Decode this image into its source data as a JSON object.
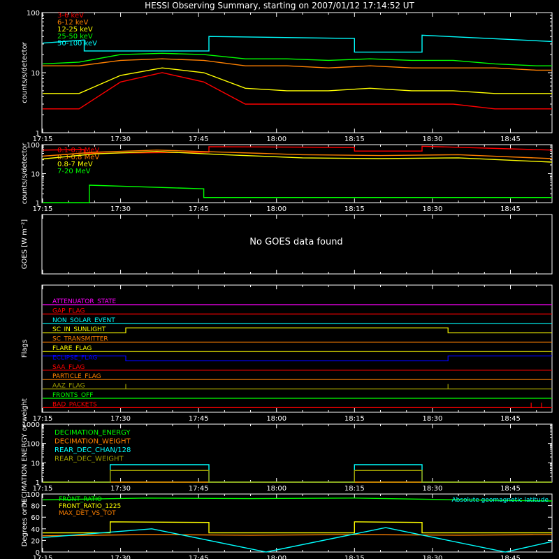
{
  "title": "HESSI Observing Summary, starting on 2007/01/12 17:14:52 UT",
  "x_tick_labels": [
    "17:15",
    "17:30",
    "17:45",
    "18:00",
    "18:15",
    "18:30",
    "18:45"
  ],
  "colors": {
    "red": "#ff0000",
    "orange": "#ff8000",
    "yellow": "#ffff00",
    "green": "#00ff00",
    "cyan": "#00ffff",
    "magenta": "#ff00ff",
    "blue": "#0000ff",
    "olive": "#a0a000",
    "white": "#ffffff"
  },
  "chart_data": [
    {
      "type": "line",
      "panel": "low-energy-rates",
      "ylabel": "counts/s/detector",
      "yscale": "log",
      "ylim": [
        1,
        100
      ],
      "y_tick_labels": [
        "1",
        "10",
        "100"
      ],
      "x_tick_labels": [
        "17:15",
        "17:30",
        "17:45",
        "18:00",
        "18:15",
        "18:30",
        "18:45"
      ],
      "x_range": [
        "17:14:52",
        "18:53"
      ],
      "series": [
        {
          "name": "3-6 keV",
          "color": "#ff0000",
          "x": [
            "17:15",
            "17:22",
            "17:30",
            "17:38",
            "17:46",
            "17:54",
            "18:02",
            "18:10",
            "18:18",
            "18:26",
            "18:34",
            "18:42",
            "18:50",
            "18:53"
          ],
          "values": [
            2.5,
            2.5,
            7,
            10,
            7,
            3,
            3,
            3,
            3,
            3,
            3,
            2.5,
            2.5,
            2.5
          ]
        },
        {
          "name": "6-12 keV",
          "color": "#ff8000",
          "x": [
            "17:15",
            "17:22",
            "17:30",
            "17:38",
            "17:46",
            "17:54",
            "18:02",
            "18:10",
            "18:18",
            "18:26",
            "18:34",
            "18:42",
            "18:50",
            "18:53"
          ],
          "values": [
            13,
            13,
            16,
            17,
            16,
            13,
            13,
            12,
            13,
            12,
            12,
            12,
            11,
            11
          ]
        },
        {
          "name": "12-25 keV",
          "color": "#ffff00",
          "x": [
            "17:15",
            "17:22",
            "17:30",
            "17:38",
            "17:46",
            "17:54",
            "18:02",
            "18:10",
            "18:18",
            "18:26",
            "18:34",
            "18:42",
            "18:50",
            "18:53"
          ],
          "values": [
            4.5,
            4.5,
            9,
            12,
            10,
            5.5,
            5,
            5,
            5.5,
            5,
            5,
            4.5,
            4.5,
            4.5
          ]
        },
        {
          "name": "25-50 keV",
          "color": "#00ff00",
          "x": [
            "17:15",
            "17:22",
            "17:30",
            "17:38",
            "17:46",
            "17:54",
            "18:02",
            "18:10",
            "18:18",
            "18:26",
            "18:34",
            "18:42",
            "18:50",
            "18:53"
          ],
          "values": [
            14,
            15,
            20,
            21,
            20,
            17,
            17,
            16,
            17,
            16,
            16,
            14,
            13,
            13
          ]
        },
        {
          "name": "50-100 keV",
          "color": "#00ffff",
          "x": [
            "17:15",
            "17:23",
            "17:23",
            "17:47",
            "17:47",
            "18:15",
            "18:15",
            "18:28",
            "18:28",
            "18:53"
          ],
          "values": [
            31,
            35,
            23,
            23,
            40,
            37,
            22,
            22,
            42,
            33
          ]
        }
      ]
    },
    {
      "type": "line",
      "panel": "high-energy-rates",
      "ylabel": "counts/s/detector",
      "yscale": "log",
      "ylim": [
        1,
        100
      ],
      "y_tick_labels": [
        "1",
        "10",
        "100"
      ],
      "x_tick_labels": [
        "17:15",
        "17:30",
        "17:45",
        "18:00",
        "18:15",
        "18:30",
        "18:45"
      ],
      "x_range": [
        "17:14:52",
        "18:53"
      ],
      "series": [
        {
          "name": "0.1-0.3 MeV",
          "color": "#ff0000",
          "x": [
            "17:15",
            "17:23",
            "17:23",
            "17:47",
            "17:47",
            "18:15",
            "18:15",
            "18:28",
            "18:28",
            "18:53"
          ],
          "values": [
            65,
            68,
            50,
            55,
            85,
            80,
            60,
            60,
            88,
            65
          ]
        },
        {
          "name": "0.3-0.8 MeV",
          "color": "#ff8000",
          "x": [
            "17:15",
            "17:25",
            "17:37",
            "17:50",
            "18:05",
            "18:20",
            "18:35",
            "18:53"
          ],
          "values": [
            40,
            55,
            65,
            55,
            45,
            42,
            45,
            33
          ]
        },
        {
          "name": "0.8-7 MeV",
          "color": "#ffff00",
          "x": [
            "17:15",
            "17:25",
            "17:37",
            "17:50",
            "18:05",
            "18:20",
            "18:35",
            "18:53"
          ],
          "values": [
            32,
            48,
            58,
            45,
            35,
            33,
            35,
            25
          ]
        },
        {
          "name": "7-20 MeV",
          "color": "#00ff00",
          "x": [
            "17:15",
            "17:24",
            "17:24",
            "17:46",
            "17:46",
            "18:53"
          ],
          "values": [
            1,
            1,
            4,
            3,
            1.5,
            1.5
          ]
        }
      ]
    },
    {
      "type": "line",
      "panel": "goes",
      "ylabel": "GOES [W m⁻²]",
      "message": "No GOES data found",
      "series": []
    },
    {
      "type": "line",
      "panel": "flags",
      "ylabel": "Flags",
      "x_tick_labels": [
        "17:15",
        "17:30",
        "17:45",
        "18:00",
        "18:15",
        "18:30",
        "18:45"
      ],
      "series": [
        {
          "name": "ATTENUATOR_STATE",
          "color": "#ff00ff",
          "x": [
            "17:15",
            "18:53"
          ],
          "values": [
            0,
            0
          ]
        },
        {
          "name": "GAP_FLAG",
          "color": "#ff0000",
          "x": [
            "17:15",
            "18:53"
          ],
          "values": [
            0,
            0
          ]
        },
        {
          "name": "NON_SOLAR_EVENT",
          "color": "#00ffff",
          "x": [
            "17:15",
            "18:53"
          ],
          "values": [
            0,
            0
          ]
        },
        {
          "name": "SC_IN_SUNLIGHT",
          "color": "#ffff00",
          "x": [
            "17:15",
            "17:31",
            "17:31",
            "18:33",
            "18:33",
            "18:53"
          ],
          "values": [
            0,
            0,
            1,
            1,
            0,
            0
          ]
        },
        {
          "name": "SC_TRANSMITTER",
          "color": "#ff8000",
          "x": [
            "17:15",
            "18:53"
          ],
          "values": [
            0,
            0
          ]
        },
        {
          "name": "FLARE_FLAG",
          "color": "#ffff00",
          "x": [
            "17:15",
            "18:53"
          ],
          "values": [
            0,
            0
          ]
        },
        {
          "name": "ECLIPSE_FLAG",
          "color": "#0000ff",
          "x": [
            "17:15",
            "17:31",
            "17:31",
            "18:33",
            "18:33",
            "18:53"
          ],
          "values": [
            1,
            1,
            0,
            0,
            1,
            1
          ]
        },
        {
          "name": "SAA_FLAG",
          "color": "#ff0000",
          "x": [
            "17:15",
            "18:53"
          ],
          "values": [
            0,
            0
          ]
        },
        {
          "name": "PARTICLE_FLAG",
          "color": "#ff8000",
          "x": [
            "17:15",
            "18:53"
          ],
          "values": [
            0,
            0
          ]
        },
        {
          "name": "AAZ_FLAG",
          "color": "#a0a000",
          "x": [
            "17:15",
            "17:31",
            "17:31",
            "17:31",
            "18:33",
            "18:33",
            "18:33",
            "18:53"
          ],
          "values": [
            0,
            0,
            1,
            0,
            0,
            1,
            0,
            0
          ]
        },
        {
          "name": "FRONTS_OFF",
          "color": "#00ff00",
          "x": [
            "17:15",
            "18:53"
          ],
          "values": [
            0,
            0
          ]
        },
        {
          "name": "BAD_PACKETS",
          "color": "#ff0000",
          "x": [
            "17:15",
            "18:49",
            "18:49",
            "18:49",
            "18:51",
            "18:51",
            "18:51",
            "18:53"
          ],
          "values": [
            0,
            0,
            1,
            0,
            0,
            1,
            0,
            0
          ]
        }
      ]
    },
    {
      "type": "line",
      "panel": "decimation",
      "ylabel": "DECIMATION ENERGY or weight",
      "yscale": "log",
      "ylim": [
        1,
        1000
      ],
      "y_tick_labels": [
        "1",
        "10",
        "100",
        "1000"
      ],
      "x_tick_labels": [
        "17:15",
        "17:30",
        "17:45",
        "18:00",
        "18:15",
        "18:30",
        "18:45"
      ],
      "series": [
        {
          "name": "DECIMATION_ENERGY",
          "color": "#00ff00",
          "x": [
            "17:15",
            "18:53"
          ],
          "values": [
            1,
            1
          ]
        },
        {
          "name": "DECIMATION_WEIGHT",
          "color": "#ff8000",
          "x": [
            "17:15",
            "18:53"
          ],
          "values": [
            1,
            1
          ]
        },
        {
          "name": "REAR_DEC_CHAN/128",
          "color": "#00ffff",
          "x": [
            "17:15",
            "17:28",
            "17:28",
            "17:47",
            "17:47",
            "18:15",
            "18:15",
            "18:28",
            "18:28",
            "18:53"
          ],
          "values": [
            1,
            1,
            8,
            8,
            1,
            1,
            8,
            8,
            1,
            1
          ]
        },
        {
          "name": "REAR_DEC_WEIGHT",
          "color": "#a0a000",
          "x": [
            "17:15",
            "17:28",
            "17:28",
            "17:47",
            "17:47",
            "18:15",
            "18:15",
            "18:28",
            "18:28",
            "18:53"
          ],
          "values": [
            1,
            1,
            4,
            4,
            1,
            1,
            4,
            4,
            1,
            1
          ]
        }
      ]
    },
    {
      "type": "line",
      "panel": "ratios",
      "ylabel": "Degrees or %",
      "ylim": [
        0,
        100
      ],
      "y_tick_labels": [
        "0",
        "20",
        "40",
        "60",
        "80",
        "100"
      ],
      "x_tick_labels": [
        "17:15",
        "17:30",
        "17:45",
        "18:00",
        "18:15",
        "18:30",
        "18:45"
      ],
      "annotation": "Absolute geomagnetic latitude",
      "series": [
        {
          "name": "FRONT_RATIO",
          "color": "#00ff00",
          "x": [
            "17:15",
            "17:35",
            "17:55",
            "18:15",
            "18:35",
            "18:53"
          ],
          "values": [
            90,
            93,
            92,
            93,
            90,
            88
          ]
        },
        {
          "name": "FRONT_RATIO_1225",
          "color": "#ffff00",
          "x": [
            "17:15",
            "17:28",
            "17:28",
            "17:47",
            "17:47",
            "18:15",
            "18:15",
            "18:28",
            "18:28",
            "18:53"
          ],
          "values": [
            33,
            33,
            52,
            51,
            33,
            33,
            52,
            51,
            33,
            33
          ]
        },
        {
          "name": "MAX_DET_VS_TOT",
          "color": "#ff8000",
          "x": [
            "17:15",
            "17:35",
            "17:55",
            "18:15",
            "18:35",
            "18:53"
          ],
          "values": [
            28,
            30,
            29,
            30,
            29,
            30
          ]
        },
        {
          "name": "Absolute geomagnetic latitude",
          "color": "#00ffff",
          "x": [
            "17:15",
            "17:36",
            "17:58",
            "18:21",
            "18:44",
            "18:53"
          ],
          "values": [
            25,
            40,
            0,
            42,
            0,
            18
          ]
        }
      ]
    }
  ]
}
